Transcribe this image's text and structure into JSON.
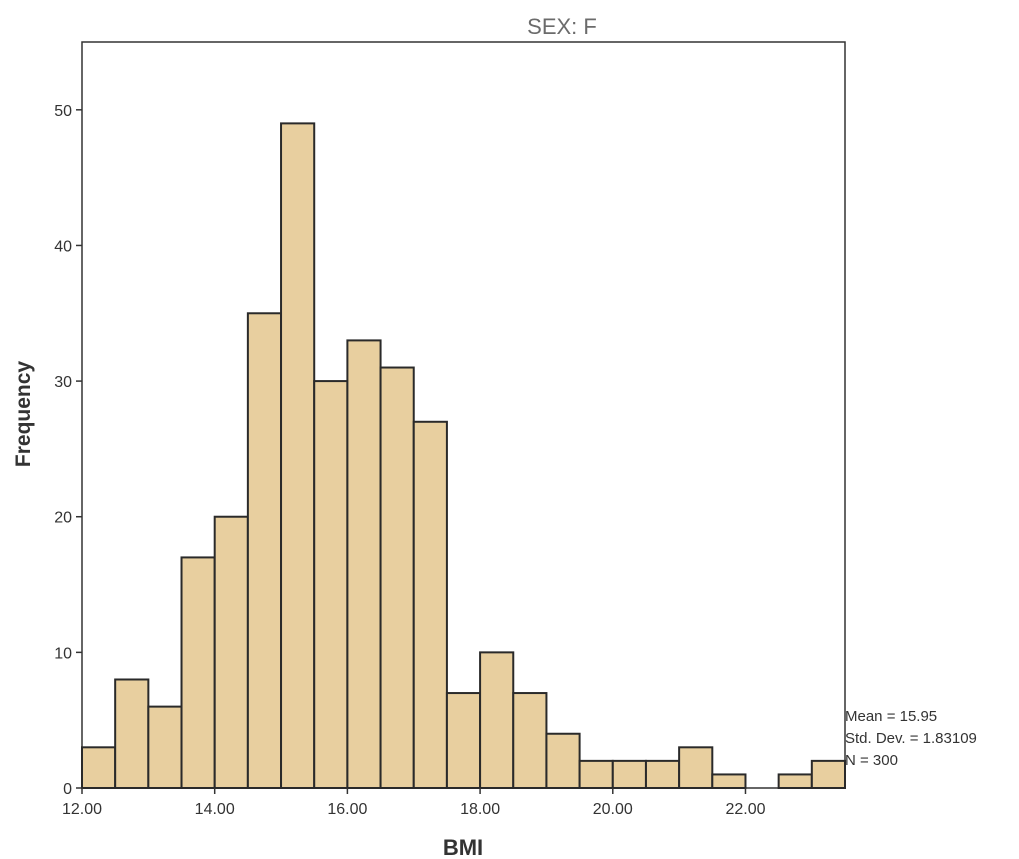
{
  "chart_data": {
    "type": "bar",
    "title": "SEX: F",
    "xlabel": "BMI",
    "ylabel": "Frequency",
    "bin_width": 0.5,
    "x_start": 12.0,
    "xlim": [
      12.0,
      23.5
    ],
    "ylim": [
      0,
      55
    ],
    "x_ticks": [
      "12.00",
      "14.00",
      "16.00",
      "18.00",
      "20.00",
      "22.00"
    ],
    "y_ticks": [
      "0",
      "10",
      "20",
      "30",
      "40",
      "50"
    ],
    "values": [
      3,
      8,
      6,
      17,
      20,
      35,
      49,
      30,
      33,
      31,
      27,
      7,
      10,
      7,
      4,
      2,
      2,
      2,
      3,
      1,
      0,
      1,
      2
    ],
    "bar_color": "#e8cf9f",
    "bar_edge_color": "#2a2a2a",
    "grid": false,
    "stats": {
      "mean": "Mean = 15.95",
      "std": "Std. Dev. = 1.83109",
      "n": "N = 300"
    }
  }
}
